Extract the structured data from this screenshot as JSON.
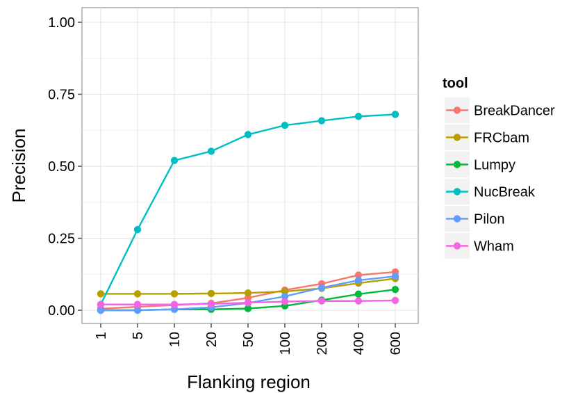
{
  "chart_data": {
    "type": "line",
    "title": "",
    "xlabel": "Flanking region",
    "ylabel": "Precision",
    "categories": [
      "1",
      "5",
      "10",
      "20",
      "50",
      "100",
      "200",
      "400",
      "600"
    ],
    "yticks": [
      "0.00",
      "0.25",
      "0.50",
      "0.75",
      "1.00"
    ],
    "ylim": [
      0,
      1
    ],
    "grid": true,
    "legend": {
      "title": "tool",
      "placement": "right"
    },
    "series": [
      {
        "name": "BreakDancer",
        "color": "#F8766D",
        "values": [
          0.005,
          0.012,
          0.018,
          0.024,
          0.043,
          0.07,
          0.092,
          0.122,
          0.133
        ]
      },
      {
        "name": "FRCbam",
        "color": "#B79F00",
        "values": [
          0.057,
          0.057,
          0.057,
          0.058,
          0.06,
          0.065,
          0.076,
          0.094,
          0.11
        ]
      },
      {
        "name": "Lumpy",
        "color": "#00BA38",
        "values": [
          0.0,
          0.0,
          0.003,
          0.003,
          0.006,
          0.015,
          0.035,
          0.056,
          0.072
        ]
      },
      {
        "name": "NucBreak",
        "color": "#00BFC4",
        "values": [
          0.02,
          0.28,
          0.52,
          0.552,
          0.61,
          0.642,
          0.658,
          0.673,
          0.68
        ]
      },
      {
        "name": "Pilon",
        "color": "#619CFF",
        "values": [
          0.0,
          0.0,
          0.003,
          0.01,
          0.025,
          0.048,
          0.078,
          0.104,
          0.118
        ]
      },
      {
        "name": "Wham",
        "color": "#F564E3",
        "values": [
          0.02,
          0.02,
          0.02,
          0.022,
          0.026,
          0.03,
          0.032,
          0.032,
          0.034
        ]
      }
    ]
  }
}
